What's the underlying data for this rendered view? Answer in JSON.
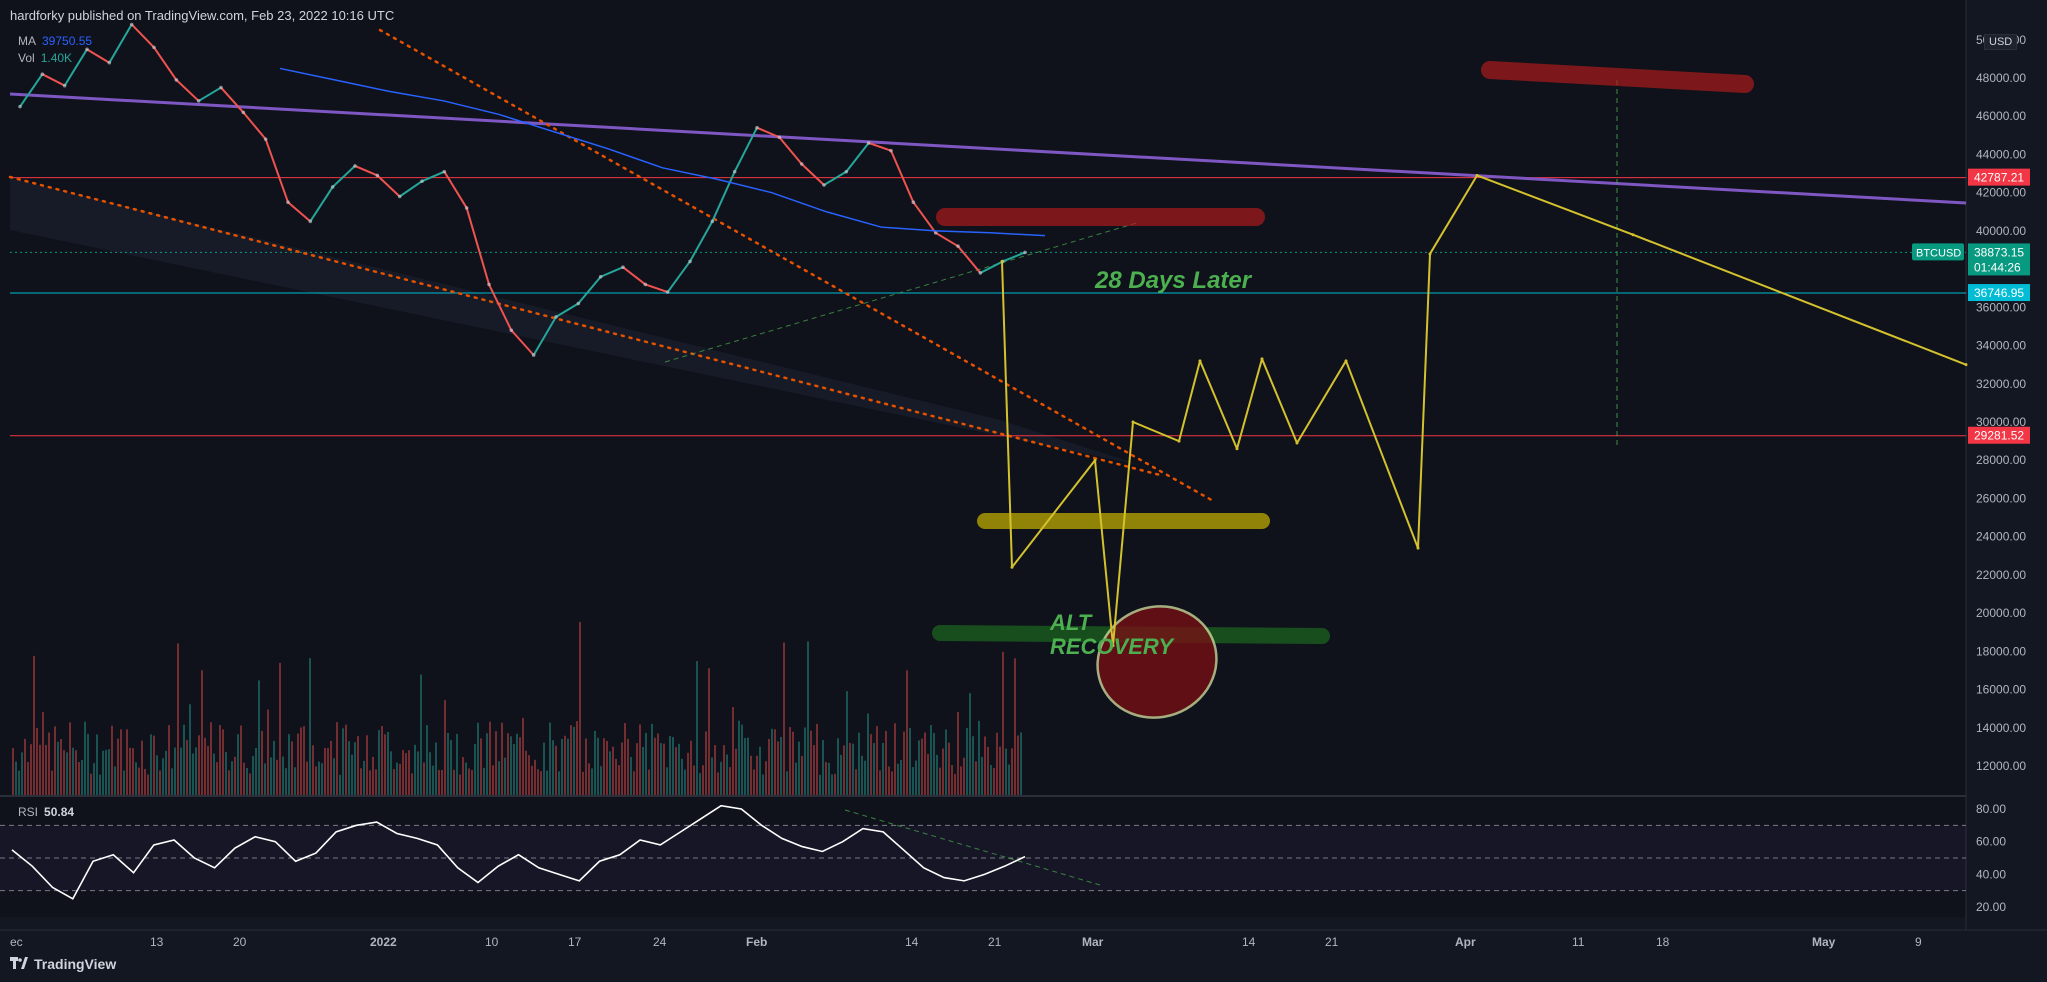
{
  "header": {
    "publisher_line": "hardforky published on TradingView.com, Feb 23, 2022 10:16 UTC"
  },
  "legend": {
    "ma_label": "MA",
    "ma_value": "39750.55",
    "vol_label": "Vol",
    "vol_value": "1.40K"
  },
  "rsi_panel": {
    "label": "RSI",
    "value": "50.84",
    "ticks": [
      "80.00",
      "60.00",
      "40.00",
      "20.00"
    ]
  },
  "footer": {
    "brand": "TradingView"
  },
  "price_axis": {
    "currency": "USD",
    "tick_labels": [
      "50000.00",
      "48000.00",
      "46000.00",
      "44000.00",
      "42000.00",
      "40000.00",
      "38000.00",
      "36000.00",
      "34000.00",
      "32000.00",
      "30000.00",
      "28000.00",
      "26000.00",
      "24000.00",
      "22000.00",
      "20000.00",
      "18000.00",
      "16000.00",
      "14000.00",
      "12000.00"
    ],
    "price_tags": [
      {
        "label": "",
        "value": "42787.21",
        "color": "#f23645"
      },
      {
        "label": "BTCUSD",
        "value": "38873.15",
        "sub": "01:44:26",
        "color": "#089981"
      },
      {
        "label": "",
        "value": "36746.95",
        "color": "#00bcd4"
      },
      {
        "label": "",
        "value": "29281.52",
        "color": "#f23645"
      }
    ]
  },
  "time_axis": {
    "tick_labels": [
      {
        "text": "ec",
        "bold": false
      },
      {
        "text": "13",
        "bold": false
      },
      {
        "text": "20",
        "bold": false
      },
      {
        "text": "2022",
        "bold": true
      },
      {
        "text": "10",
        "bold": false
      },
      {
        "text": "17",
        "bold": false
      },
      {
        "text": "24",
        "bold": false
      },
      {
        "text": "Feb",
        "bold": true
      },
      {
        "text": "14",
        "bold": false
      },
      {
        "text": "21",
        "bold": false
      },
      {
        "text": "Mar",
        "bold": true
      },
      {
        "text": "14",
        "bold": false
      },
      {
        "text": "21",
        "bold": false
      },
      {
        "text": "Apr",
        "bold": true
      },
      {
        "text": "11",
        "bold": false
      },
      {
        "text": "18",
        "bold": false
      },
      {
        "text": "May",
        "bold": true
      },
      {
        "text": "9",
        "bold": false
      }
    ]
  },
  "annotations": {
    "days_later": "28 Days Later",
    "alt_recovery_1": "ALT",
    "alt_recovery_2": "RECOVERY"
  },
  "chart_data": {
    "type": "line",
    "symbol": "BTCUSD",
    "ylim": [
      11000,
      51000
    ],
    "horizontal_levels": [
      42787.21,
      38873.15,
      36746.95,
      29281.52
    ],
    "moving_average": [
      48500,
      47900,
      47300,
      46800,
      46100,
      45200,
      44300,
      43300,
      42700,
      42000,
      41000,
      40200,
      40000,
      39900,
      39750
    ],
    "price_path": [
      46500,
      48200,
      47600,
      49500,
      48800,
      50800,
      49600,
      47900,
      46800,
      47500,
      46200,
      44800,
      41500,
      40500,
      42300,
      43400,
      42900,
      41800,
      42600,
      43100,
      41200,
      37200,
      34800,
      33500,
      35500,
      36200,
      37600,
      38100,
      37200,
      36800,
      38400,
      40500,
      43100,
      45400,
      44900,
      43500,
      42400,
      43100,
      44600,
      44200,
      41500,
      39900,
      39200,
      37800,
      38400,
      38873
    ],
    "projection_path": [
      38400,
      22400,
      28000,
      18300,
      30000,
      29000,
      33200,
      28600,
      33300,
      28900,
      33200,
      23400,
      38800,
      42900,
      39800,
      33000
    ],
    "rsi_series": [
      55,
      45,
      32,
      25,
      48,
      52,
      41,
      58,
      61,
      50,
      44,
      56,
      63,
      60,
      48,
      53,
      66,
      70,
      72,
      65,
      62,
      58,
      44,
      35,
      45,
      52,
      44,
      40,
      36,
      48,
      52,
      61,
      58,
      66,
      74,
      82,
      80,
      70,
      62,
      57,
      54,
      60,
      68,
      66,
      55,
      44,
      38,
      36,
      40,
      45,
      50.84
    ],
    "rsi_ylim": [
      15,
      85
    ],
    "rsi_bands": [
      70,
      50,
      30
    ]
  }
}
